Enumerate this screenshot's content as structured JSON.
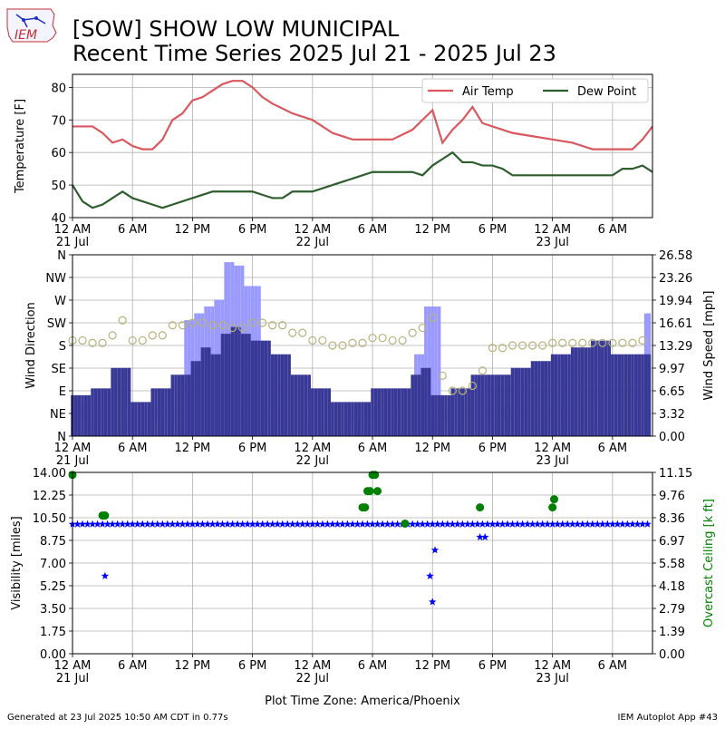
{
  "header": {
    "logo_text": "IEM",
    "title_line1": "[SOW] SHOW LOW MUNICIPAL",
    "title_line2": "Recent Time Series 2025 Jul 21 - 2025 Jul 23"
  },
  "footer": {
    "generated": "Generated at 23 Jul 2025 10:50 AM CDT in 0.77s",
    "app": "IEM Autoplot App #43",
    "plot_tz": "Plot Time Zone: America/Phoenix"
  },
  "colors": {
    "air_temp": "#d9585f",
    "dew_point": "#2e5e2e",
    "wind_speed": "#383897",
    "wind_gust": "#9999ff",
    "wind_dir_marker": "#b5b37c",
    "visibility": "#0000ff",
    "ceiling": "#008000",
    "grid": "#b0b0b0"
  },
  "time_axis": {
    "start": "2025-07-21 00:00",
    "end": "2025-07-23 10:00",
    "ticks": [
      {
        "time": "2025-07-21 00:00",
        "label": "12 AM",
        "date": "21 Jul"
      },
      {
        "time": "2025-07-21 06:00",
        "label": "6 AM",
        "date": ""
      },
      {
        "time": "2025-07-21 12:00",
        "label": "12 PM",
        "date": ""
      },
      {
        "time": "2025-07-21 18:00",
        "label": "6 PM",
        "date": ""
      },
      {
        "time": "2025-07-22 00:00",
        "label": "12 AM",
        "date": "22 Jul"
      },
      {
        "time": "2025-07-22 06:00",
        "label": "6 AM",
        "date": ""
      },
      {
        "time": "2025-07-22 12:00",
        "label": "12 PM",
        "date": ""
      },
      {
        "time": "2025-07-22 18:00",
        "label": "6 PM",
        "date": ""
      },
      {
        "time": "2025-07-23 00:00",
        "label": "12 AM",
        "date": "23 Jul"
      },
      {
        "time": "2025-07-23 06:00",
        "label": "6 AM",
        "date": ""
      }
    ]
  },
  "chart_data": [
    {
      "type": "line",
      "ylabel": "Temperature [F]",
      "ylim": [
        40,
        84
      ],
      "yticks": [
        "40",
        "50",
        "60",
        "70",
        "80"
      ],
      "legend": "top-right",
      "grid": true,
      "series": [
        {
          "name": "Air Temp",
          "x": [
            "2025-07-21 00:00",
            "2025-07-21 02:00",
            "2025-07-21 03:00",
            "2025-07-21 04:00",
            "2025-07-21 05:00",
            "2025-07-21 06:00",
            "2025-07-21 07:00",
            "2025-07-21 08:00",
            "2025-07-21 09:00",
            "2025-07-21 10:00",
            "2025-07-21 11:00",
            "2025-07-21 12:00",
            "2025-07-21 13:00",
            "2025-07-21 14:00",
            "2025-07-21 15:00",
            "2025-07-21 16:00",
            "2025-07-21 17:00",
            "2025-07-21 18:00",
            "2025-07-21 19:00",
            "2025-07-21 20:00",
            "2025-07-21 22:00",
            "2025-07-22 00:00",
            "2025-07-22 02:00",
            "2025-07-22 04:00",
            "2025-07-22 06:00",
            "2025-07-22 08:00",
            "2025-07-22 10:00",
            "2025-07-22 11:00",
            "2025-07-22 12:00",
            "2025-07-22 13:00",
            "2025-07-22 14:00",
            "2025-07-22 15:00",
            "2025-07-22 16:00",
            "2025-07-22 17:00",
            "2025-07-22 18:00",
            "2025-07-22 20:00",
            "2025-07-22 22:00",
            "2025-07-23 00:00",
            "2025-07-23 02:00",
            "2025-07-23 04:00",
            "2025-07-23 06:00",
            "2025-07-23 08:00",
            "2025-07-23 09:00",
            "2025-07-23 10:00"
          ],
          "values": [
            68,
            68,
            66,
            63,
            64,
            62,
            61,
            61,
            64,
            70,
            72,
            76,
            77,
            79,
            81,
            82,
            82,
            80,
            77,
            75,
            72,
            70,
            66,
            64,
            64,
            64,
            67,
            70,
            73,
            63,
            67,
            70,
            74,
            69,
            68,
            66,
            65,
            64,
            63,
            61,
            61,
            61,
            64,
            68
          ]
        },
        {
          "name": "Dew Point",
          "x": [
            "2025-07-21 00:00",
            "2025-07-21 01:00",
            "2025-07-21 02:00",
            "2025-07-21 03:00",
            "2025-07-21 04:00",
            "2025-07-21 05:00",
            "2025-07-21 06:00",
            "2025-07-21 07:00",
            "2025-07-21 08:00",
            "2025-07-21 09:00",
            "2025-07-21 10:00",
            "2025-07-21 12:00",
            "2025-07-21 14:00",
            "2025-07-21 16:00",
            "2025-07-21 18:00",
            "2025-07-21 19:00",
            "2025-07-21 20:00",
            "2025-07-21 21:00",
            "2025-07-21 22:00",
            "2025-07-22 00:00",
            "2025-07-22 02:00",
            "2025-07-22 04:00",
            "2025-07-22 06:00",
            "2025-07-22 08:00",
            "2025-07-22 10:00",
            "2025-07-22 11:00",
            "2025-07-22 12:00",
            "2025-07-22 13:00",
            "2025-07-22 14:00",
            "2025-07-22 15:00",
            "2025-07-22 16:00",
            "2025-07-22 17:00",
            "2025-07-22 18:00",
            "2025-07-22 19:00",
            "2025-07-22 20:00",
            "2025-07-22 22:00",
            "2025-07-23 00:00",
            "2025-07-23 02:00",
            "2025-07-23 04:00",
            "2025-07-23 06:00",
            "2025-07-23 07:00",
            "2025-07-23 08:00",
            "2025-07-23 09:00",
            "2025-07-23 10:00"
          ],
          "values": [
            50,
            45,
            43,
            44,
            46,
            48,
            46,
            45,
            44,
            43,
            44,
            46,
            48,
            48,
            48,
            47,
            46,
            46,
            48,
            48,
            50,
            52,
            54,
            54,
            54,
            53,
            56,
            58,
            60,
            57,
            57,
            56,
            56,
            55,
            53,
            53,
            53,
            53,
            53,
            53,
            55,
            55,
            56,
            54
          ]
        }
      ]
    },
    {
      "type": "bar",
      "ylabel": "Wind Direction",
      "y2label": "Wind Speed [mph]",
      "y_direction_ticks": [
        "N",
        "NE",
        "E",
        "SE",
        "S",
        "SW",
        "W",
        "NW",
        "N"
      ],
      "y2lim": [
        0,
        26.58
      ],
      "y2ticks": [
        "0.00",
        "3.32",
        "6.65",
        "9.97",
        "13.29",
        "16.61",
        "19.94",
        "23.26",
        "26.58"
      ],
      "grid": true,
      "series": [
        {
          "name": "Wind Speed",
          "x": [
            "2025-07-21 00:00",
            "2025-07-21 02:00",
            "2025-07-21 04:00",
            "2025-07-21 06:00",
            "2025-07-21 08:00",
            "2025-07-21 10:00",
            "2025-07-21 12:00",
            "2025-07-21 13:00",
            "2025-07-21 14:00",
            "2025-07-21 15:00",
            "2025-07-21 16:00",
            "2025-07-21 17:00",
            "2025-07-21 18:00",
            "2025-07-21 20:00",
            "2025-07-21 22:00",
            "2025-07-22 00:00",
            "2025-07-22 02:00",
            "2025-07-22 04:00",
            "2025-07-22 06:00",
            "2025-07-22 08:00",
            "2025-07-22 10:00",
            "2025-07-22 11:00",
            "2025-07-22 12:00",
            "2025-07-22 14:00",
            "2025-07-22 16:00",
            "2025-07-22 18:00",
            "2025-07-22 20:00",
            "2025-07-22 22:00",
            "2025-07-23 00:00",
            "2025-07-23 02:00",
            "2025-07-23 04:00",
            "2025-07-23 06:00",
            "2025-07-23 08:00",
            "2025-07-23 10:00"
          ],
          "values": [
            6,
            7,
            10,
            5,
            7,
            9,
            11,
            13,
            12,
            15,
            16,
            15,
            14,
            12,
            9,
            7,
            5,
            5,
            7,
            7,
            9,
            10,
            6,
            7,
            9,
            9,
            10,
            11,
            12,
            13,
            14,
            12,
            12,
            13
          ]
        },
        {
          "name": "Wind Gust",
          "x": [
            "2025-07-21 12:00",
            "2025-07-21 13:00",
            "2025-07-21 14:00",
            "2025-07-21 15:00",
            "2025-07-21 16:00",
            "2025-07-21 17:00",
            "2025-07-21 18:00",
            "2025-07-22 11:00",
            "2025-07-22 12:00",
            "2025-07-23 10:00"
          ],
          "values": [
            17,
            18,
            19,
            20,
            25.5,
            25,
            22,
            12,
            19,
            18
          ]
        },
        {
          "name": "Wind Direction",
          "x": [
            "2025-07-21 00:00",
            "2025-07-21 02:00",
            "2025-07-21 04:00",
            "2025-07-21 05:00",
            "2025-07-21 06:00",
            "2025-07-21 08:00",
            "2025-07-21 10:00",
            "2025-07-21 12:00",
            "2025-07-21 14:00",
            "2025-07-21 16:00",
            "2025-07-21 18:00",
            "2025-07-21 20:00",
            "2025-07-21 22:00",
            "2025-07-22 00:00",
            "2025-07-22 02:00",
            "2025-07-22 04:00",
            "2025-07-22 06:00",
            "2025-07-22 08:00",
            "2025-07-22 10:00",
            "2025-07-22 11:00",
            "2025-07-22 12:00",
            "2025-07-22 13:00",
            "2025-07-22 14:00",
            "2025-07-22 15:00",
            "2025-07-22 16:00",
            "2025-07-22 17:00",
            "2025-07-22 18:00",
            "2025-07-22 20:00",
            "2025-07-22 22:00",
            "2025-07-23 00:00",
            "2025-07-23 02:00",
            "2025-07-23 04:00",
            "2025-07-23 06:00",
            "2025-07-23 08:00",
            "2025-07-23 09:00",
            "2025-07-23 10:00"
          ],
          "values": [
            190,
            185,
            200,
            230,
            190,
            200,
            220,
            225,
            220,
            215,
            225,
            220,
            205,
            190,
            180,
            185,
            195,
            190,
            205,
            215,
            235,
            120,
            90,
            90,
            100,
            130,
            175,
            180,
            180,
            185,
            185,
            185,
            185,
            185,
            190,
            225
          ]
        }
      ]
    },
    {
      "type": "scatter",
      "ylabel": "Visibility [miles]",
      "y2label": "Overcast Ceiling [k ft]",
      "ylim": [
        0,
        14
      ],
      "yticks": [
        "0.00",
        "1.75",
        "3.50",
        "5.25",
        "7.00",
        "8.75",
        "10.50",
        "12.25",
        "14.00"
      ],
      "y2lim": [
        0,
        11.15
      ],
      "y2ticks": [
        "0.00",
        "1.39",
        "2.79",
        "4.18",
        "5.58",
        "6.97",
        "8.36",
        "9.76",
        "11.15"
      ],
      "grid": true,
      "series": [
        {
          "name": "Visibility",
          "x": [
            "2025-07-21 03:15",
            "2025-07-22 11:45",
            "2025-07-22 12:00",
            "2025-07-22 12:15",
            "2025-07-22 16:45",
            "2025-07-22 17:15"
          ],
          "values": [
            6.0,
            6.0,
            4.0,
            8.0,
            9.0,
            9.0
          ],
          "baseline": 10.0
        },
        {
          "name": "Overcast Ceiling",
          "x": [
            "2025-07-21 00:00",
            "2025-07-21 03:00",
            "2025-07-21 03:15",
            "2025-07-22 05:00",
            "2025-07-22 05:15",
            "2025-07-22 05:30",
            "2025-07-22 05:45",
            "2025-07-22 06:00",
            "2025-07-22 06:15",
            "2025-07-22 06:30",
            "2025-07-22 09:15",
            "2025-07-22 16:45",
            "2025-07-23 00:00",
            "2025-07-23 00:10"
          ],
          "values": [
            11.0,
            8.5,
            8.5,
            9.0,
            9.0,
            10.0,
            10.0,
            11.0,
            11.0,
            10.0,
            8.0,
            9.0,
            9.0,
            9.5
          ]
        }
      ]
    }
  ]
}
